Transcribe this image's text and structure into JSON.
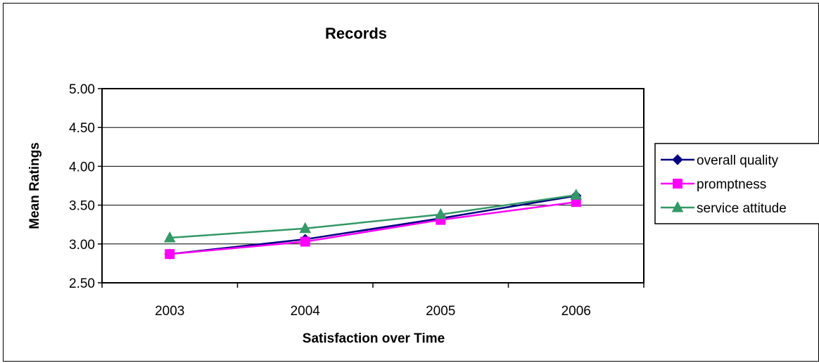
{
  "chart_data": {
    "type": "line",
    "title": "Records",
    "xlabel": "Satisfaction over Time",
    "ylabel": "Mean Ratings",
    "categories": [
      "2003",
      "2004",
      "2005",
      "2006"
    ],
    "ylim": [
      2.5,
      5.0
    ],
    "yticks": [
      "2.50",
      "3.00",
      "3.50",
      "4.00",
      "4.50",
      "5.00"
    ],
    "grid": true,
    "legend_position": "right",
    "series": [
      {
        "name": "overall quality",
        "values": [
          2.87,
          3.06,
          3.33,
          3.62
        ],
        "color": "#000080",
        "marker": "diamond"
      },
      {
        "name": "promptness",
        "values": [
          2.87,
          3.03,
          3.31,
          3.54
        ],
        "color": "#FF00FF",
        "marker": "square"
      },
      {
        "name": "service attitude",
        "values": [
          3.08,
          3.2,
          3.38,
          3.63
        ],
        "color": "#339966",
        "marker": "triangle"
      }
    ]
  }
}
